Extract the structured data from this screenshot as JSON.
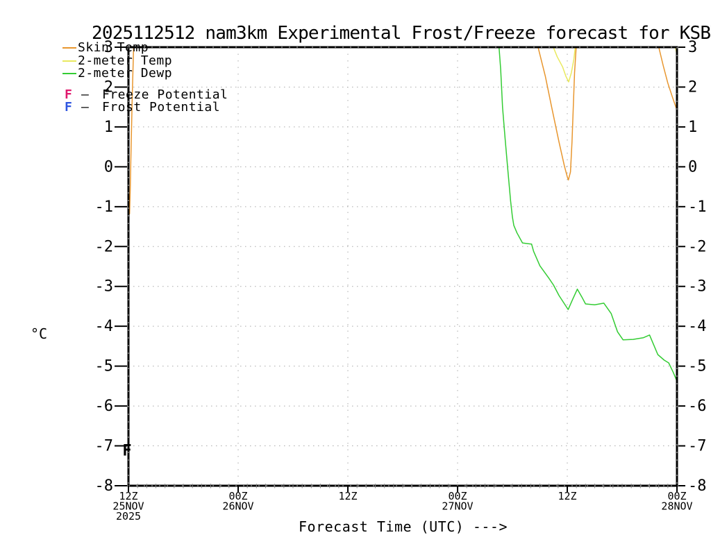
{
  "title": "2025112512 nam3km Experimental Frost/Freeze forecast for KSBY",
  "y_axis_unit": "°C",
  "x_axis_title": "Forecast Time (UTC) --->",
  "legend": {
    "series": [
      {
        "label": "Skin Temp",
        "color": "#E8962E"
      },
      {
        "label": "2-meter Temp",
        "color": "#E9E95E"
      },
      {
        "label": "2-meter Dewp",
        "color": "#33CC33"
      }
    ],
    "markers": [
      {
        "symbol": "F",
        "separator": "—",
        "label": "Freeze Potential",
        "color": "#E0186D"
      },
      {
        "symbol": "F",
        "separator": "—",
        "label": "Frost Potential",
        "color": "#2E55E0"
      }
    ]
  },
  "chart_data": {
    "type": "line",
    "title": "2025112512 nam3km Experimental Frost/Freeze forecast for KSBY",
    "xlabel": "Forecast Time (UTC) --->",
    "ylabel": "°C",
    "x_unit": "hours since 25NOV2025 12Z",
    "xlim": [
      0,
      60
    ],
    "ylim": [
      -8,
      3
    ],
    "grid": "dotted",
    "legend_position": "top-left-inside",
    "yticks": [
      3,
      2,
      1,
      0,
      -1,
      -2,
      -3,
      -4,
      -5,
      -6,
      -7,
      -8
    ],
    "grid_values": [
      2,
      1,
      0,
      -1,
      -2,
      -3,
      -4,
      -5,
      -6,
      -7
    ],
    "grid_hours": [
      12,
      24,
      36,
      48
    ],
    "xticks": [
      {
        "hour": 0,
        "lines": [
          "12Z",
          "25NOV",
          "2025"
        ]
      },
      {
        "hour": 12,
        "lines": [
          "00Z",
          "26NOV"
        ]
      },
      {
        "hour": 24,
        "lines": [
          "12Z"
        ]
      },
      {
        "hour": 36,
        "lines": [
          "00Z",
          "27NOV"
        ]
      },
      {
        "hour": 48,
        "lines": [
          "12Z"
        ]
      },
      {
        "hour": 60,
        "lines": [
          "00Z",
          "28NOV"
        ]
      }
    ],
    "series": [
      {
        "name": "Skin Temp",
        "color": "#E8962E",
        "segments": [
          [
            [
              0.12,
              -1.18
            ],
            [
              0.2,
              -0.55
            ],
            [
              0.3,
              0.55
            ],
            [
              0.42,
              1.8
            ],
            [
              0.58,
              3.1
            ]
          ],
          [
            [
              44.7,
              3.1
            ],
            [
              45.6,
              2.27
            ],
            [
              46.3,
              1.49
            ],
            [
              47.1,
              0.62
            ],
            [
              47.7,
              0.01
            ],
            [
              48.0,
              -0.25
            ],
            [
              48.12,
              -0.33
            ],
            [
              48.35,
              -0.13
            ],
            [
              48.52,
              0.62
            ],
            [
              48.8,
              2.36
            ],
            [
              49.0,
              3.1
            ]
          ],
          [
            [
              57.9,
              3.1
            ],
            [
              58.5,
              2.53
            ],
            [
              59.0,
              2.1
            ],
            [
              59.5,
              1.75
            ],
            [
              60.0,
              1.42
            ]
          ]
        ]
      },
      {
        "name": "2-meter Temp",
        "color": "#E9E95E",
        "segments": [
          [
            [
              46.3,
              3.1
            ],
            [
              46.9,
              2.76
            ],
            [
              47.5,
              2.5
            ],
            [
              47.85,
              2.27
            ],
            [
              48.15,
              2.13
            ],
            [
              48.45,
              2.36
            ],
            [
              48.72,
              2.7
            ],
            [
              48.92,
              3.1
            ]
          ],
          [
            [
              59.75,
              3.1
            ],
            [
              60.0,
              2.8
            ]
          ]
        ]
      },
      {
        "name": "2-meter Dewp",
        "color": "#33CC33",
        "segments": [
          [
            [
              40.5,
              3.1
            ],
            [
              40.72,
              2.44
            ],
            [
              40.92,
              1.49
            ],
            [
              41.2,
              0.7
            ],
            [
              41.5,
              -0.08
            ],
            [
              41.8,
              -0.86
            ],
            [
              42.0,
              -1.26
            ],
            [
              42.15,
              -1.47
            ],
            [
              42.5,
              -1.66
            ],
            [
              43.1,
              -1.91
            ],
            [
              44.1,
              -1.94
            ],
            [
              44.32,
              -2.12
            ],
            [
              45.0,
              -2.48
            ],
            [
              46.0,
              -2.8
            ],
            [
              46.5,
              -2.97
            ],
            [
              47.1,
              -3.23
            ],
            [
              48.1,
              -3.58
            ],
            [
              48.6,
              -3.32
            ],
            [
              49.1,
              -3.07
            ],
            [
              49.6,
              -3.27
            ],
            [
              50.0,
              -3.44
            ],
            [
              51.0,
              -3.46
            ],
            [
              52.0,
              -3.42
            ],
            [
              52.8,
              -3.68
            ],
            [
              53.5,
              -4.14
            ],
            [
              54.1,
              -4.34
            ],
            [
              55.2,
              -4.33
            ],
            [
              56.3,
              -4.29
            ],
            [
              57.0,
              -4.22
            ],
            [
              57.9,
              -4.71
            ],
            [
              58.6,
              -4.85
            ],
            [
              59.1,
              -4.92
            ],
            [
              59.6,
              -5.16
            ],
            [
              60.0,
              -5.38
            ]
          ]
        ]
      }
    ],
    "point_markers": [
      {
        "symbol": "F",
        "meaning": "Frost Potential",
        "hour": -0.15,
        "value": -7.1,
        "color": "#2E55E0"
      }
    ]
  }
}
